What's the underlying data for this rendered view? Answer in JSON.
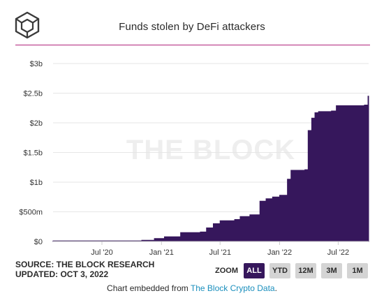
{
  "header": {
    "title": "Funds stolen by DeFi attackers"
  },
  "chart_data": {
    "type": "area",
    "title": "Funds stolen by DeFi attackers",
    "xlabel": "",
    "ylabel": "",
    "ylim": [
      0,
      3000000000
    ],
    "xlim": [
      "2020-02-01",
      "2022-10-03"
    ],
    "y_ticks": [
      {
        "value": 0,
        "label": "$0"
      },
      {
        "value": 500000000,
        "label": "$500m"
      },
      {
        "value": 1000000000,
        "label": "$1b"
      },
      {
        "value": 1500000000,
        "label": "$1.5b"
      },
      {
        "value": 2000000000,
        "label": "$2b"
      },
      {
        "value": 2500000000,
        "label": "$2.5b"
      },
      {
        "value": 3000000000,
        "label": "$3b"
      }
    ],
    "x_ticks": [
      {
        "date": "2020-07-01",
        "label": "Jul '20"
      },
      {
        "date": "2021-01-01",
        "label": "Jan '21"
      },
      {
        "date": "2021-07-01",
        "label": "Jul '21"
      },
      {
        "date": "2022-01-01",
        "label": "Jan '22"
      },
      {
        "date": "2022-07-01",
        "label": "Jul '22"
      }
    ],
    "grid": true,
    "watermark": "THE BLOCK",
    "series": [
      {
        "color": "#36175c",
        "step": true,
        "x": [
          "2020-02-01",
          "2020-11-01",
          "2020-12-10",
          "2021-01-10",
          "2021-03-01",
          "2021-05-01",
          "2021-05-20",
          "2021-06-10",
          "2021-07-01",
          "2021-08-15",
          "2021-09-01",
          "2021-10-01",
          "2021-11-01",
          "2021-11-20",
          "2021-12-10",
          "2022-01-01",
          "2022-01-25",
          "2022-02-05",
          "2022-03-20",
          "2022-03-30",
          "2022-04-10",
          "2022-04-20",
          "2022-05-01",
          "2022-06-10",
          "2022-06-25",
          "2022-09-20",
          "2022-10-01"
        ],
        "y": [
          10000000,
          20000000,
          50000000,
          80000000,
          150000000,
          160000000,
          230000000,
          300000000,
          350000000,
          370000000,
          420000000,
          450000000,
          680000000,
          720000000,
          750000000,
          780000000,
          1050000000,
          1200000000,
          1210000000,
          1870000000,
          2080000000,
          2170000000,
          2190000000,
          2200000000,
          2290000000,
          2300000000,
          2450000000
        ]
      }
    ]
  },
  "footer": {
    "source": "SOURCE: THE BLOCK RESEARCH",
    "updated": "UPDATED: OCT 3, 2022",
    "zoom_label": "ZOOM",
    "zoom_options": [
      "ALL",
      "YTD",
      "12M",
      "3M",
      "1M"
    ],
    "zoom_selected": "ALL",
    "embed_prefix": "Chart embedded from ",
    "embed_link": "The Block Crypto Data",
    "embed_suffix": "."
  }
}
